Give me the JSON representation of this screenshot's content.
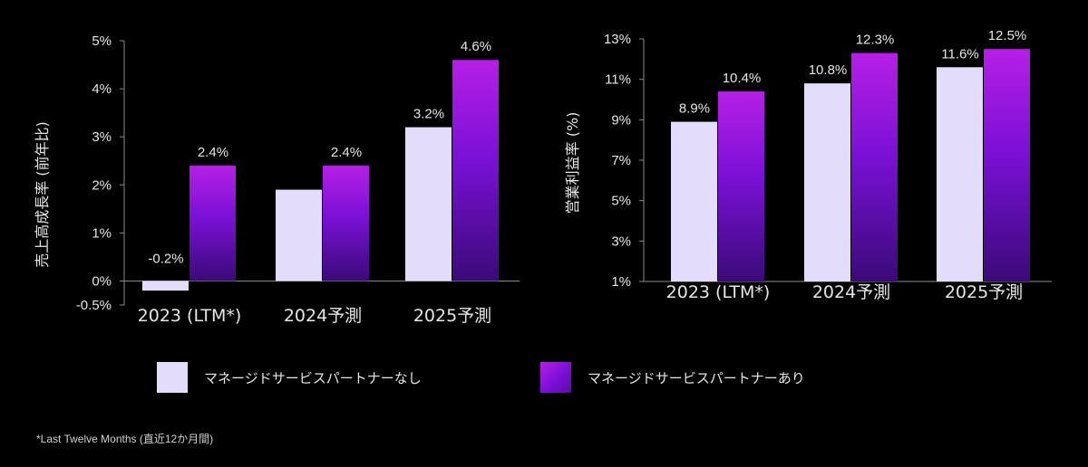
{
  "colors": {
    "background": "#000000",
    "without_partner": "#e3dcfb",
    "with_partner_top": "#b61fe6",
    "with_partner_bottom": "#3a0a78",
    "text": "#e6e6e6",
    "axis": "#8a8a8a"
  },
  "legend": {
    "without_label": "マネージドサービスパートナーなし",
    "with_label": "マネージドサービスパートナーあり"
  },
  "footnote": "*Last Twelve Months (直近12か月間)",
  "chart_data": [
    {
      "type": "bar",
      "ylabel": "売上高成長率 (前年比)",
      "xlabel": "",
      "categories": [
        "2023 (LTM*)",
        "2024予測",
        "2025予測"
      ],
      "ylim": [
        -0.5,
        5
      ],
      "yticks": [
        -0.5,
        0,
        1,
        2,
        3,
        4,
        5
      ],
      "ytick_labels": [
        "-0.5%",
        "0%",
        "1%",
        "2%",
        "3%",
        "4%",
        "5%"
      ],
      "series": [
        {
          "name": "マネージドサービスパートナーなし",
          "values": [
            -0.2,
            1.9,
            3.2
          ],
          "labels": [
            "-0.2%",
            "",
            "3.2%"
          ]
        },
        {
          "name": "マネージドサービスパートナーあり",
          "values": [
            2.4,
            2.4,
            4.6
          ],
          "labels": [
            "2.4%",
            "2.4%",
            "4.6%"
          ]
        }
      ]
    },
    {
      "type": "bar",
      "ylabel": "営業利益率 (%)",
      "xlabel": "",
      "categories": [
        "2023 (LTM*)",
        "2024予測",
        "2025予測"
      ],
      "ylim": [
        1,
        13
      ],
      "yticks": [
        1,
        3,
        5,
        7,
        9,
        11,
        13
      ],
      "ytick_labels": [
        "1%",
        "3%",
        "5%",
        "7%",
        "9%",
        "11%",
        "13%"
      ],
      "series": [
        {
          "name": "マネージドサービスパートナーなし",
          "values": [
            8.9,
            10.8,
            11.6
          ],
          "labels": [
            "8.9%",
            "10.8%",
            "11.6%"
          ]
        },
        {
          "name": "マネージドサービスパートナーあり",
          "values": [
            10.4,
            12.3,
            12.5
          ],
          "labels": [
            "10.4%",
            "12.3%",
            "12.5%"
          ]
        }
      ]
    }
  ]
}
